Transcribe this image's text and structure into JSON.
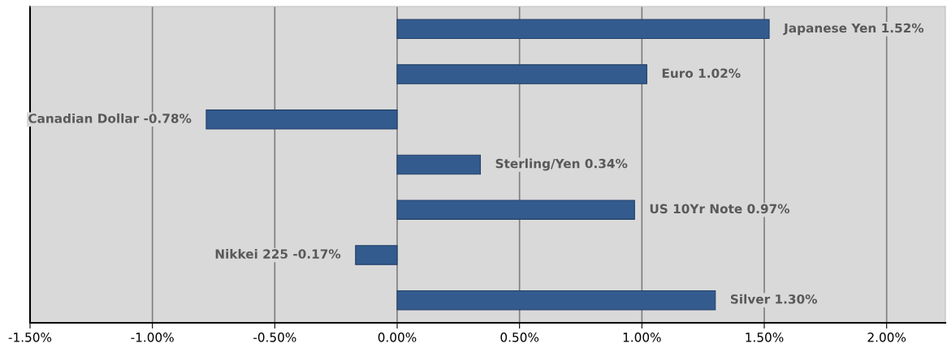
{
  "chart_data": {
    "type": "bar",
    "orientation": "horizontal",
    "categories": [
      null,
      null,
      null,
      null,
      null,
      null,
      null
    ],
    "values": [
      1.52,
      1.02,
      -0.78,
      0.34,
      0.97,
      -0.17,
      1.3
    ],
    "value_labels": [
      "Japanese Yen 1.52%",
      "Euro 1.02%",
      "Canadian Dollar -0.78%",
      "Sterling/Yen 0.34%",
      "US 10Yr Note 0.97%",
      "Nikkei 225 -0.17%",
      "Silver 1.30%"
    ],
    "color": "#335b8e",
    "xlim": [
      -1.5,
      2.24
    ],
    "xticks": [
      {
        "value": -1.5,
        "label": "-1.50%"
      },
      {
        "value": -1.0,
        "label": "-1.00%"
      },
      {
        "value": -0.5,
        "label": "-0.50%"
      },
      {
        "value": 0.0,
        "label": "0.00%"
      },
      {
        "value": 0.5,
        "label": "0.50%"
      },
      {
        "value": 1.0,
        "label": "1.00%"
      },
      {
        "value": 1.5,
        "label": "1.50%"
      },
      {
        "value": 2.0,
        "label": "2.00%"
      }
    ],
    "grid": "x",
    "tick_labels": "x",
    "legend": false
  }
}
